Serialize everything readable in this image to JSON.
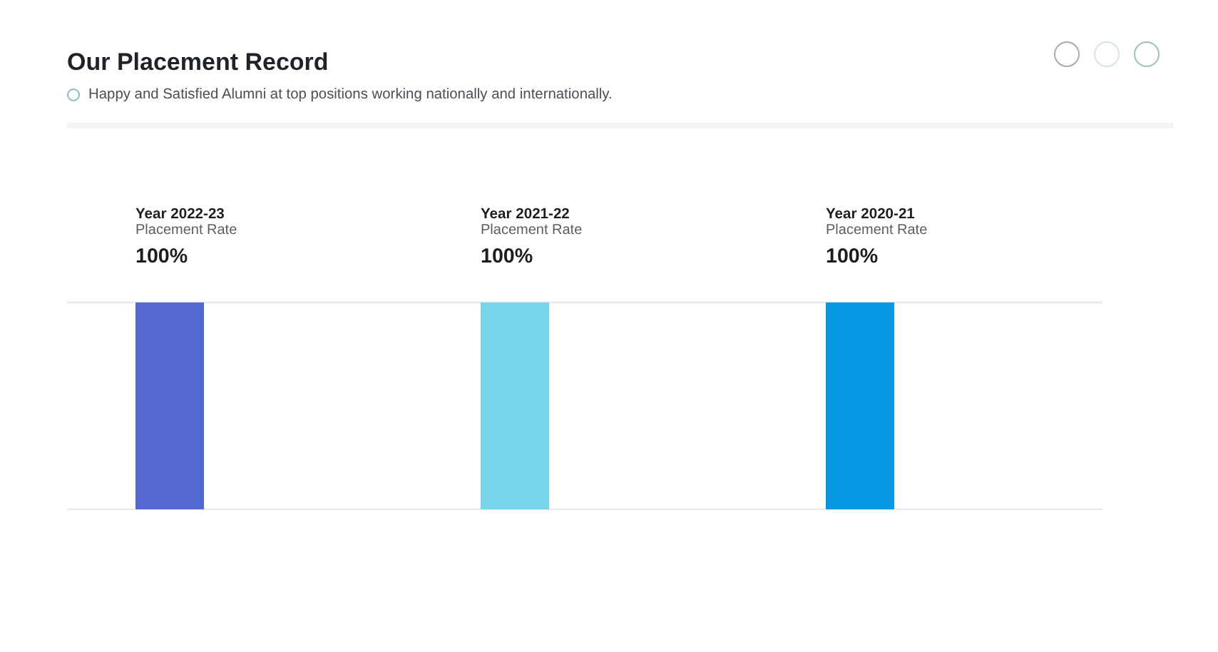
{
  "chart_data": {
    "type": "bar",
    "title": "Our Placement Record",
    "subtitle": "Happy and Satisfied Alumni at top positions working nationally and internationally.",
    "categories": [
      "Year 2022-23",
      "Year 2021-22",
      "Year 2020-21"
    ],
    "series": [
      {
        "name": "Placement Rate",
        "colors": [
          "#5468d4",
          "#76d5e8",
          "#0898e4"
        ],
        "values": [
          100,
          100,
          100
        ],
        "value_labels": [
          "100%",
          "100%",
          "100%"
        ]
      }
    ],
    "ylim": [
      0,
      100
    ],
    "yticks": [
      {
        "value": 0,
        "label": null
      },
      {
        "value": 100,
        "label": null
      }
    ],
    "grid": "y",
    "tick_labels": "x"
  }
}
